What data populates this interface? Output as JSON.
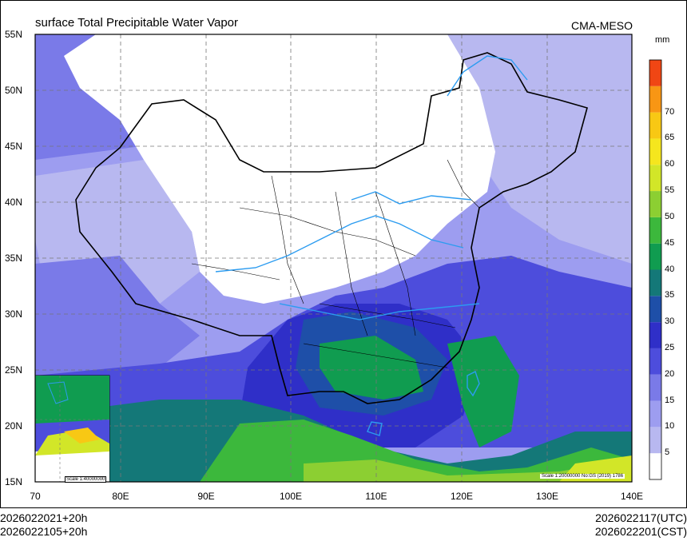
{
  "title": "surface Total Precipitable Water Vapor",
  "producer": "CMA-MESO",
  "unit": "mm",
  "lat_labels": [
    "55N",
    "50N",
    "45N",
    "40N",
    "35N",
    "30N",
    "25N",
    "20N",
    "15N"
  ],
  "lon_labels": [
    "70",
    "80E",
    "90E",
    "100E",
    "110E",
    "120E",
    "130E",
    "140E"
  ],
  "colorbar": {
    "levels": [
      "70",
      "65",
      "60",
      "55",
      "50",
      "45",
      "40",
      "35",
      "30",
      "25",
      "20",
      "15",
      "10",
      "5"
    ],
    "colors": [
      "#ffffff",
      "#b8b8f0",
      "#9d9df0",
      "#7a7ae8",
      "#4d4ddc",
      "#2f2fc8",
      "#1e4fa8",
      "#147878",
      "#109c50",
      "#3cb83c",
      "#8ccf32",
      "#d2e628",
      "#f5e61e",
      "#f8c814",
      "#f89614",
      "#f04614"
    ]
  },
  "scale_main": "Scale 1:20000000 No:GS (2019) 1786",
  "scale_inset": "Scale 1:40000000",
  "footer": {
    "init_utc": "2026022021+20h",
    "init_cst": "2026022105+20h",
    "valid_utc": "2026022117(UTC)",
    "valid_cst": "2026022201(CST)"
  }
}
